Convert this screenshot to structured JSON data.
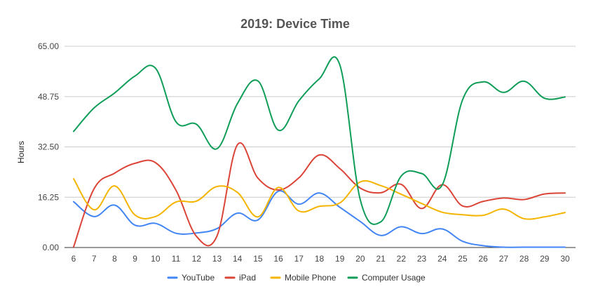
{
  "chart_data": {
    "type": "line",
    "title": "2019: Device Time",
    "xlabel": "",
    "ylabel": "Hours",
    "ylim": [
      0,
      65
    ],
    "yticks": [
      "0.00",
      "16.25",
      "32.50",
      "48.75",
      "65.00"
    ],
    "x": [
      6,
      7,
      8,
      9,
      10,
      11,
      12,
      13,
      14,
      15,
      16,
      17,
      18,
      19,
      20,
      21,
      22,
      23,
      24,
      25,
      26,
      27,
      28,
      29,
      30
    ],
    "grid": true,
    "legend_position": "bottom",
    "series": [
      {
        "name": "YouTube",
        "color": "#4285f4",
        "values": [
          14.8,
          10.0,
          13.7,
          7.2,
          7.8,
          4.6,
          4.7,
          6.1,
          11.1,
          8.9,
          18.2,
          14.0,
          17.6,
          13.0,
          8.4,
          3.9,
          6.7,
          4.5,
          6.0,
          2.0,
          0.6,
          0.1,
          0.1,
          0.1,
          0.1
        ]
      },
      {
        "name": "iPad",
        "color": "#db4437",
        "values": [
          0.2,
          19.0,
          24.0,
          27.2,
          27.4,
          18.5,
          3.6,
          3.7,
          33.2,
          22.4,
          18.6,
          22.5,
          29.9,
          25.5,
          19.2,
          17.7,
          20.4,
          12.6,
          20.3,
          13.4,
          14.9,
          16.0,
          15.5,
          17.3,
          17.6
        ]
      },
      {
        "name": "Mobile Phone",
        "color": "#f4b400",
        "values": [
          22.2,
          12.2,
          19.9,
          10.5,
          10.0,
          14.7,
          15.0,
          19.7,
          17.8,
          9.9,
          19.4,
          11.8,
          13.3,
          14.4,
          21.2,
          20.0,
          17.2,
          14.2,
          11.4,
          10.6,
          10.4,
          12.4,
          9.3,
          9.9,
          11.3
        ]
      },
      {
        "name": "Computer Usage",
        "color": "#0f9d58",
        "values": [
          37.5,
          45.1,
          49.9,
          55.4,
          57.9,
          40.6,
          39.8,
          31.9,
          46.5,
          53.8,
          37.9,
          47.4,
          54.5,
          59.0,
          15.4,
          8.3,
          23.1,
          23.9,
          20.2,
          47.8,
          53.5,
          50.1,
          53.7,
          48.2,
          48.6
        ]
      }
    ]
  }
}
